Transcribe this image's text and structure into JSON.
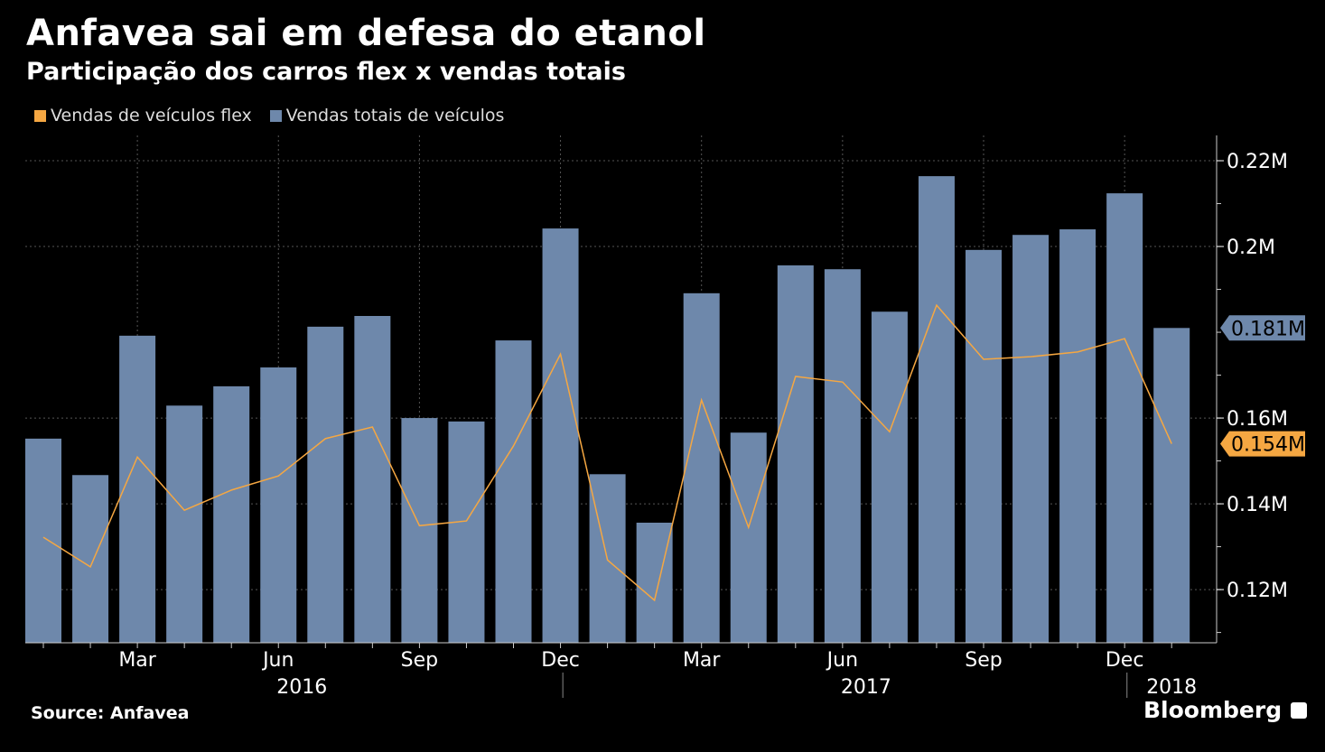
{
  "chart_data": {
    "type": "bar",
    "title": "Anfavea sai em defesa do etanol",
    "subtitle": "Participação dos carros flex x vendas totais",
    "xlabel": "",
    "ylabel": "",
    "ylim": [
      0.1076,
      0.2259
    ],
    "grid": true,
    "legend_placement": "top-left",
    "categories": [
      "Jan 2016",
      "Feb 2016",
      "Mar 2016",
      "Apr 2016",
      "May 2016",
      "Jun 2016",
      "Jul 2016",
      "Aug 2016",
      "Sep 2016",
      "Oct 2016",
      "Nov 2016",
      "Dec 2016",
      "Jan 2017",
      "Feb 2017",
      "Mar 2017",
      "Apr 2017",
      "May 2017",
      "Jun 2017",
      "Jul 2017",
      "Aug 2017",
      "Sep 2017",
      "Oct 2017",
      "Nov 2017",
      "Dec 2017",
      "Jan 2018"
    ],
    "series": [
      {
        "name": "Vendas de veículos flex",
        "type": "line",
        "color": "#f5a742",
        "values": [
          0.1322,
          0.1253,
          0.1509,
          0.1385,
          0.1432,
          0.1465,
          0.1552,
          0.1579,
          0.1349,
          0.136,
          0.1535,
          0.1749,
          0.1269,
          0.1175,
          0.1642,
          0.1345,
          0.1697,
          0.1684,
          0.1568,
          0.1863,
          0.1737,
          0.1743,
          0.1754,
          0.1785,
          0.154
        ],
        "last_label": "0.154M"
      },
      {
        "name": "Vendas totais de veículos",
        "type": "bar",
        "color": "#6e88ab",
        "values": [
          0.1552,
          0.1467,
          0.1792,
          0.1629,
          0.1674,
          0.1718,
          0.1813,
          0.1838,
          0.16,
          0.1592,
          0.1781,
          0.2042,
          0.1469,
          0.1356,
          0.1891,
          0.1566,
          0.1956,
          0.1947,
          0.1848,
          0.2164,
          0.1992,
          0.2027,
          0.204,
          0.2124,
          0.181
        ],
        "last_label": "0.181M"
      }
    ],
    "y_ticks": [
      {
        "v": 0.12,
        "label": "0.12M"
      },
      {
        "v": 0.14,
        "label": "0.14M"
      },
      {
        "v": 0.16,
        "label": "0.16M"
      },
      {
        "v": 0.2,
        "label": "0.2M"
      },
      {
        "v": 0.22,
        "label": "0.22M"
      }
    ],
    "x_ticks": [
      {
        "i": 2,
        "label": "Mar"
      },
      {
        "i": 5,
        "label": "Jun"
      },
      {
        "i": 8,
        "label": "Sep"
      },
      {
        "i": 11,
        "label": "Dec"
      },
      {
        "i": 14,
        "label": "Mar"
      },
      {
        "i": 17,
        "label": "Jun"
      },
      {
        "i": 20,
        "label": "Sep"
      },
      {
        "i": 23,
        "label": "Dec"
      }
    ],
    "years": [
      {
        "i": 5.5,
        "label": "2016"
      },
      {
        "i": 17.5,
        "label": "2017"
      },
      {
        "i": 24,
        "label": "2018"
      }
    ]
  },
  "footer": {
    "source": "Source: Anfavea",
    "brand": "Bloomberg"
  }
}
